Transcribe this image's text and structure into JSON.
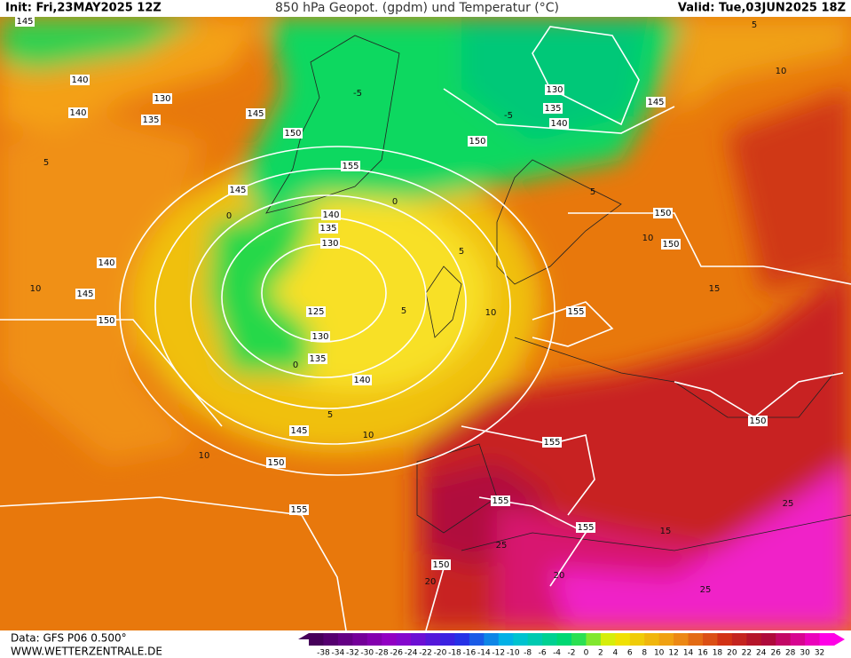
{
  "header": {
    "init": "Init: Fri,23MAY2025 12Z",
    "title": "850 hPa Geopot. (gpdm) und Temperatur (°C)",
    "valid": "Valid: Tue,03JUN2025 18Z"
  },
  "map": {
    "geopotential_labels": [
      145,
      140,
      140,
      130,
      135,
      145,
      150,
      155,
      145,
      140,
      135,
      130,
      140,
      145,
      150,
      125,
      130,
      135,
      140,
      145,
      150,
      155,
      150,
      155,
      155,
      155,
      155,
      150,
      130,
      135,
      140,
      145,
      150,
      150,
      150
    ],
    "temperature_labels": [
      10,
      5,
      10,
      5,
      10,
      5,
      10,
      0,
      0,
      5,
      15,
      10,
      5,
      20,
      25,
      25,
      15,
      20,
      25,
      -5,
      -5,
      0,
      5,
      10
    ]
  },
  "colorbar": {
    "labels": [
      -38,
      -34,
      -32,
      -30,
      -28,
      -26,
      -24,
      -22,
      -20,
      -18,
      -16,
      -14,
      -12,
      -10,
      -8,
      -6,
      -4,
      -2,
      0,
      2,
      4,
      6,
      8,
      10,
      12,
      14,
      16,
      18,
      20,
      22,
      24,
      26,
      28,
      30,
      32
    ]
  },
  "footer": {
    "source": "Data: GFS P06 0.500°",
    "website": "WWW.WETTERZENTRALE.DE"
  }
}
